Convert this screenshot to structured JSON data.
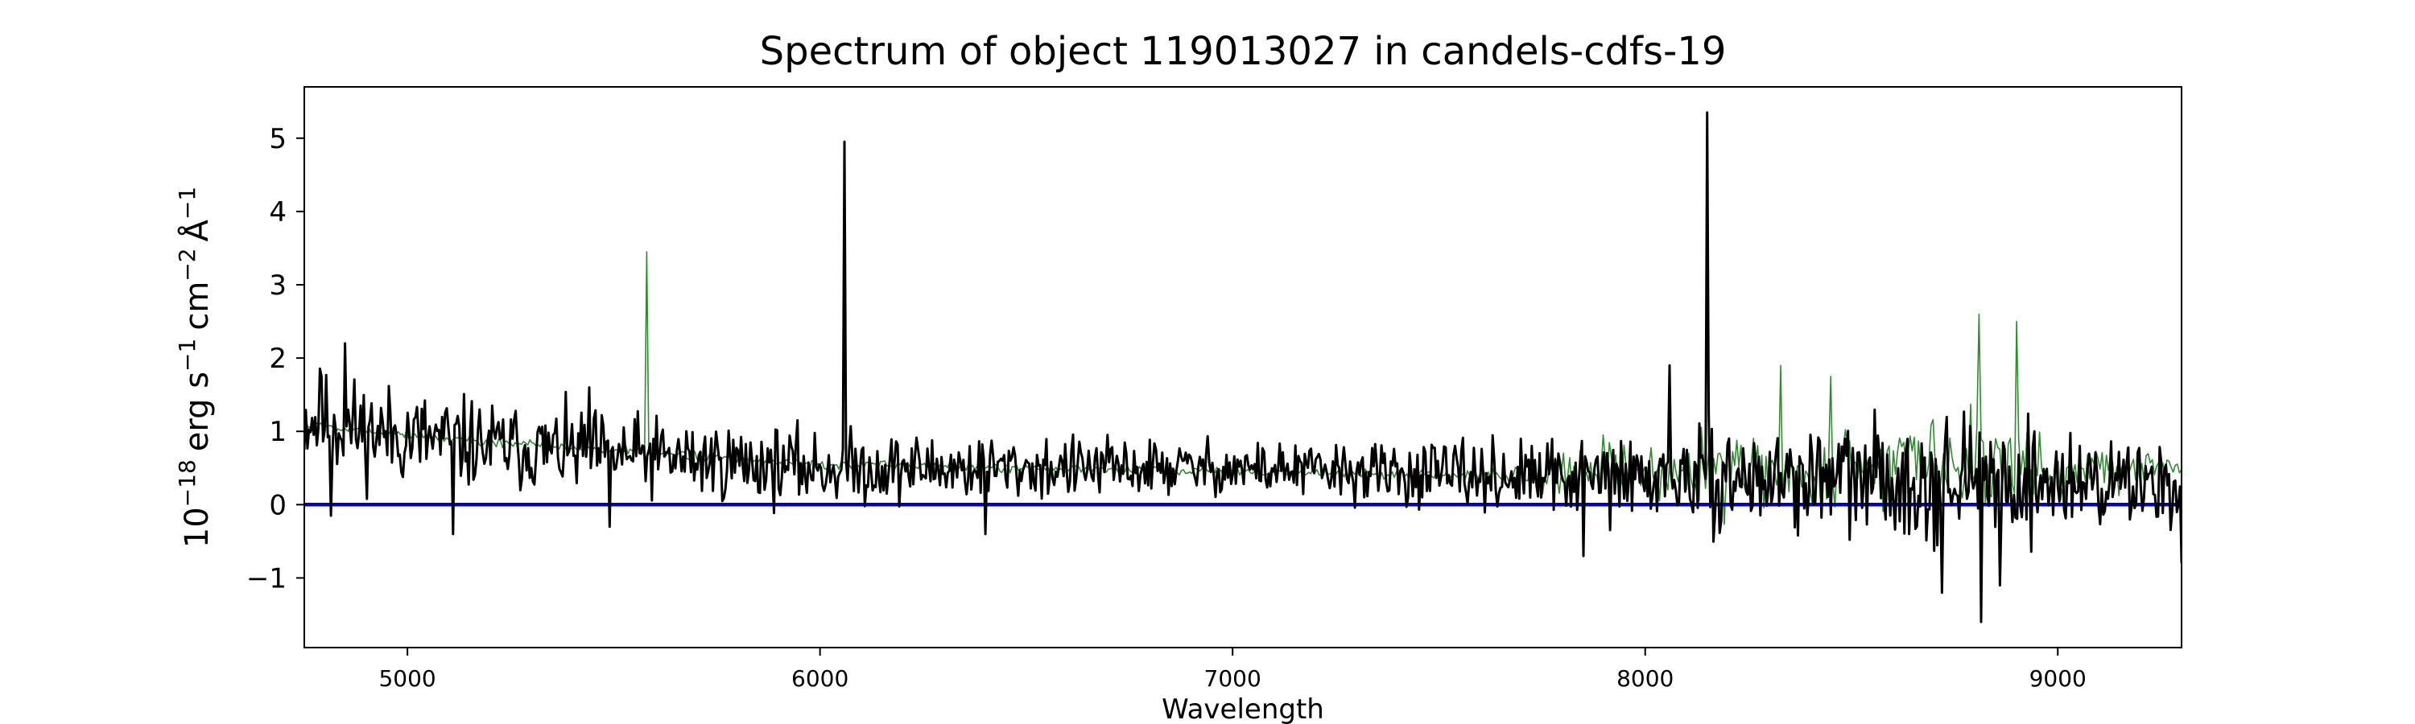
{
  "chart_data": {
    "type": "line",
    "title": "Spectrum of object 119013027 in candels-cdfs-19",
    "xlabel": "Wavelength",
    "ylabel_parts": {
      "base": "10",
      "exp_power": "−18",
      "erg": "erg s",
      "s_exp": "−1",
      "cm": "cm",
      "cm_exp": "−2",
      "ang": "Å",
      "ang_exp": "−1"
    },
    "xlim": [
      4750,
      9300
    ],
    "ylim": [
      -1.95,
      5.7
    ],
    "xticks": [
      5000,
      6000,
      7000,
      8000,
      9000
    ],
    "yticks": [
      -1,
      0,
      1,
      2,
      3,
      4,
      5
    ],
    "grid": false,
    "series": [
      {
        "role": "spectrum",
        "color": "#000000",
        "x_start": 4750,
        "x_end": 9300,
        "n": 1200,
        "seed": 11,
        "anchors": [
          [
            4750,
            1.2
          ],
          [
            4900,
            1.0
          ],
          [
            5200,
            0.8
          ],
          [
            5600,
            0.65
          ],
          [
            6000,
            0.5
          ],
          [
            6500,
            0.5
          ],
          [
            7000,
            0.5
          ],
          [
            7500,
            0.4
          ],
          [
            8000,
            0.35
          ],
          [
            8500,
            0.35
          ],
          [
            9000,
            0.3
          ],
          [
            9300,
            0.3
          ]
        ],
        "noise": [
          [
            4750,
            0.55
          ],
          [
            5200,
            0.45
          ],
          [
            6000,
            0.38
          ],
          [
            7000,
            0.28
          ],
          [
            7700,
            0.35
          ],
          [
            8000,
            0.45
          ],
          [
            8700,
            0.6
          ],
          [
            9000,
            0.55
          ],
          [
            9300,
            0.4
          ]
        ],
        "features": [
          [
            4790,
            1.75
          ],
          [
            4815,
            -0.15
          ],
          [
            4850,
            2.2
          ],
          [
            5110,
            -0.4
          ],
          [
            5440,
            1.6
          ],
          [
            5490,
            -0.3
          ],
          [
            6060,
            4.95
          ],
          [
            6400,
            -0.4
          ],
          [
            7850,
            -0.7
          ],
          [
            8060,
            1.9
          ],
          [
            8150,
            5.35
          ],
          [
            8720,
            -1.2
          ],
          [
            8815,
            -1.6
          ],
          [
            8860,
            -1.1
          ],
          [
            9300,
            -0.8
          ]
        ]
      },
      {
        "role": "model",
        "color": "#2e8b2e",
        "x_start": 4750,
        "x_end": 9300,
        "n": 900,
        "seed": 5,
        "anchors": [
          [
            4750,
            1.1
          ],
          [
            5200,
            0.85
          ],
          [
            5600,
            0.7
          ],
          [
            6000,
            0.55
          ],
          [
            6500,
            0.5
          ],
          [
            7000,
            0.45
          ],
          [
            7500,
            0.4
          ],
          [
            8000,
            0.45
          ],
          [
            8500,
            0.5
          ],
          [
            9000,
            0.55
          ],
          [
            9300,
            0.5
          ]
        ],
        "noise": [
          [
            4750,
            0.05
          ],
          [
            7600,
            0.05
          ],
          [
            7700,
            0.25
          ],
          [
            8000,
            0.3
          ],
          [
            8300,
            0.45
          ],
          [
            8800,
            0.55
          ],
          [
            9100,
            0.3
          ],
          [
            9300,
            0.1
          ]
        ],
        "features": [
          [
            5580,
            3.45
          ],
          [
            8330,
            1.9
          ],
          [
            8450,
            1.75
          ],
          [
            8810,
            2.6
          ],
          [
            8900,
            2.5
          ]
        ]
      },
      {
        "role": "zero-line",
        "color": "#0000cc",
        "x": [
          4750,
          9300
        ],
        "y": [
          0,
          0
        ]
      }
    ]
  }
}
